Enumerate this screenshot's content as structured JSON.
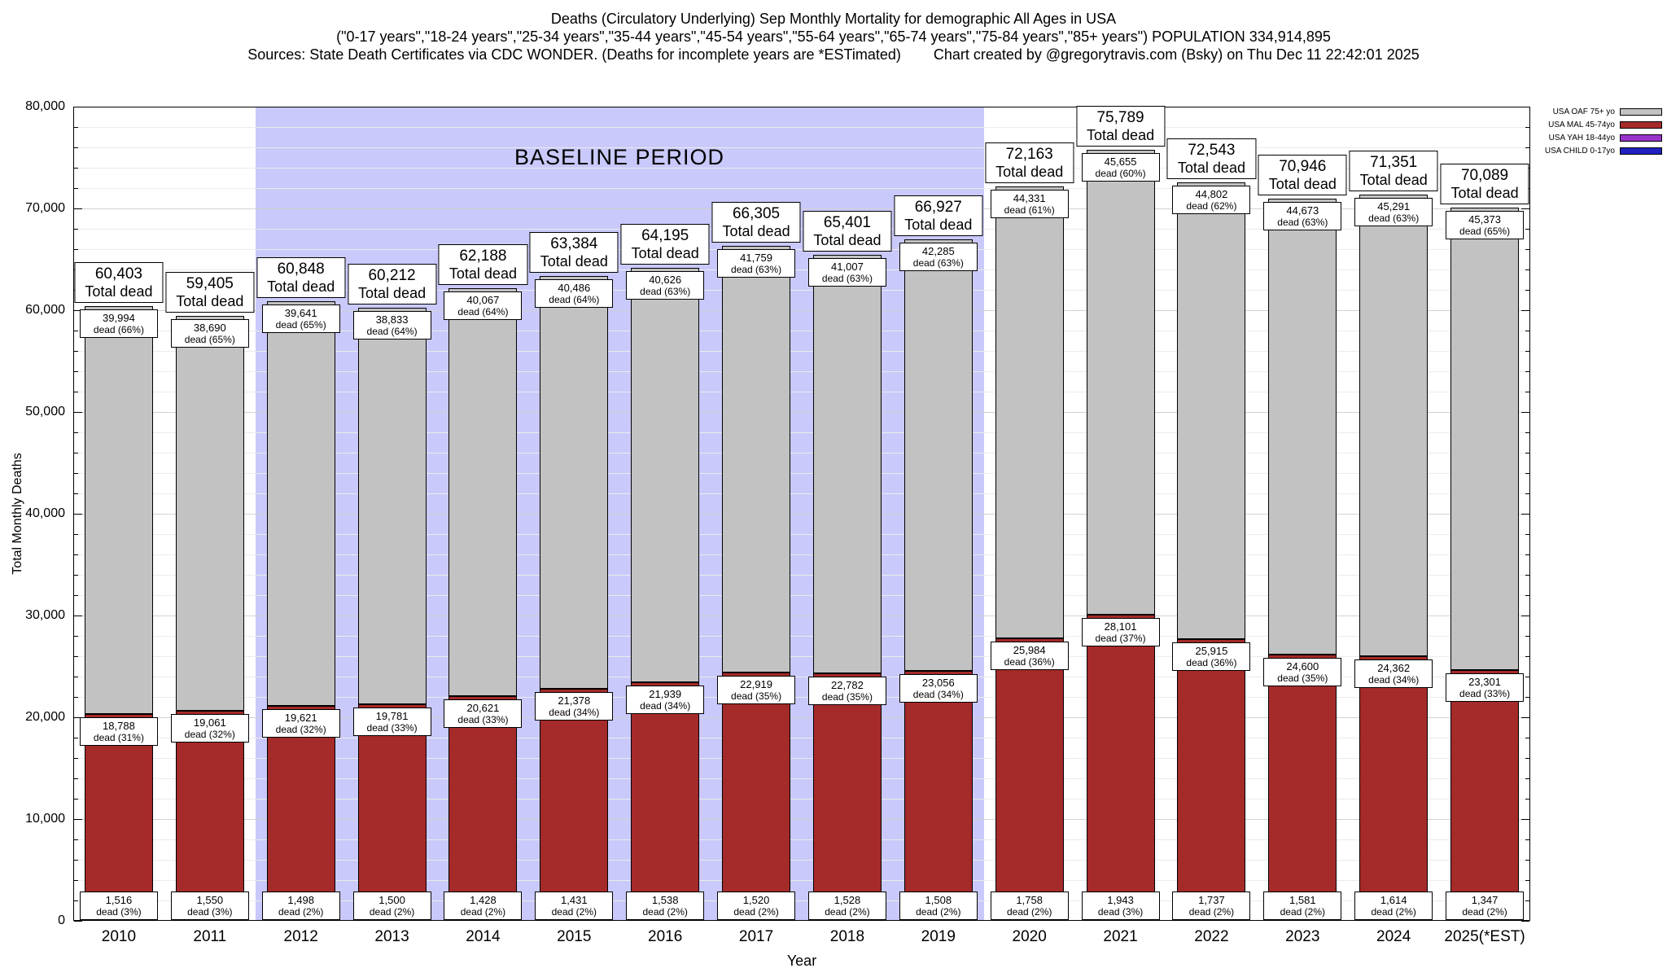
{
  "header": {
    "title_line1": "Deaths (Circulatory Underlying) Sep Monthly Mortality for demographic All Ages in USA",
    "title_line2": "(\"0-17 years\",\"18-24 years\",\"25-34 years\",\"35-44 years\",\"45-54 years\",\"55-64 years\",\"65-74 years\",\"75-84 years\",\"85+ years\") POPULATION 334,914,895",
    "sources": "Sources: State Death Certificates via CDC WONDER. (Deaths for incomplete years are *ESTimated)",
    "credit": "Chart created by @gregorytravis.com (Bsky) on Thu Dec 11 22:42:01 2025"
  },
  "chart_data": {
    "type": "bar",
    "stacked": true,
    "title": "Deaths (Circulatory Underlying) Sep Monthly Mortality for demographic All Ages in USA",
    "xlabel": "Year",
    "ylabel": "Total Monthly Deaths",
    "ylim": [
      0,
      80000
    ],
    "y_major_step": 10000,
    "y_minor_step": 2000,
    "grid": true,
    "y_ticks": [
      "0",
      "10,000",
      "20,000",
      "30,000",
      "40,000",
      "50,000",
      "60,000",
      "70,000",
      "80,000"
    ],
    "colors": {
      "oaf": "#c2c2c2",
      "mal": "#a52a2a",
      "yah": "#9933cc",
      "child": "#2020c0",
      "baseline": "#c9c9fb"
    },
    "baseline": {
      "label": "BASELINE PERIOD",
      "from_index": 2,
      "to_index": 9
    },
    "legend": [
      {
        "label": "USA OAF 75+ yo",
        "key": "oaf"
      },
      {
        "label": "USA MAL 45-74yo",
        "key": "mal"
      },
      {
        "label": "USA YAH 18-44yo",
        "key": "yah"
      },
      {
        "label": "USA CHILD 0-17yo",
        "key": "child"
      }
    ],
    "bars": [
      {
        "year": "2010",
        "total": {
          "value": 60403,
          "text": "60,403",
          "sub": "Total dead"
        },
        "oaf": {
          "value": 39994,
          "text": "39,994",
          "sub": "dead (66%)"
        },
        "mal": {
          "value": 18788,
          "text": "18,788",
          "sub": "dead (31%)"
        },
        "yah": {
          "value": 1516,
          "text": "1,516",
          "sub": "dead (3%)"
        }
      },
      {
        "year": "2011",
        "total": {
          "value": 59405,
          "text": "59,405",
          "sub": "Total dead"
        },
        "oaf": {
          "value": 38690,
          "text": "38,690",
          "sub": "dead (65%)"
        },
        "mal": {
          "value": 19061,
          "text": "19,061",
          "sub": "dead (32%)"
        },
        "yah": {
          "value": 1550,
          "text": "1,550",
          "sub": "dead (3%)"
        }
      },
      {
        "year": "2012",
        "total": {
          "value": 60848,
          "text": "60,848",
          "sub": "Total dead"
        },
        "oaf": {
          "value": 39641,
          "text": "39,641",
          "sub": "dead (65%)"
        },
        "mal": {
          "value": 19621,
          "text": "19,621",
          "sub": "dead (32%)"
        },
        "yah": {
          "value": 1498,
          "text": "1,498",
          "sub": "dead (2%)"
        }
      },
      {
        "year": "2013",
        "total": {
          "value": 60212,
          "text": "60,212",
          "sub": "Total dead"
        },
        "oaf": {
          "value": 38833,
          "text": "38,833",
          "sub": "dead (64%)"
        },
        "mal": {
          "value": 19781,
          "text": "19,781",
          "sub": "dead (33%)"
        },
        "yah": {
          "value": 1500,
          "text": "1,500",
          "sub": "dead (2%)"
        }
      },
      {
        "year": "2014",
        "total": {
          "value": 62188,
          "text": "62,188",
          "sub": "Total dead"
        },
        "oaf": {
          "value": 40067,
          "text": "40,067",
          "sub": "dead (64%)"
        },
        "mal": {
          "value": 20621,
          "text": "20,621",
          "sub": "dead (33%)"
        },
        "yah": {
          "value": 1428,
          "text": "1,428",
          "sub": "dead (2%)"
        }
      },
      {
        "year": "2015",
        "total": {
          "value": 63384,
          "text": "63,384",
          "sub": "Total dead"
        },
        "oaf": {
          "value": 40486,
          "text": "40,486",
          "sub": "dead (64%)"
        },
        "mal": {
          "value": 21378,
          "text": "21,378",
          "sub": "dead (34%)"
        },
        "yah": {
          "value": 1431,
          "text": "1,431",
          "sub": "dead (2%)"
        }
      },
      {
        "year": "2016",
        "total": {
          "value": 64195,
          "text": "64,195",
          "sub": "Total dead"
        },
        "oaf": {
          "value": 40626,
          "text": "40,626",
          "sub": "dead (63%)"
        },
        "mal": {
          "value": 21939,
          "text": "21,939",
          "sub": "dead (34%)"
        },
        "yah": {
          "value": 1538,
          "text": "1,538",
          "sub": "dead (2%)"
        }
      },
      {
        "year": "2017",
        "total": {
          "value": 66305,
          "text": "66,305",
          "sub": "Total dead"
        },
        "oaf": {
          "value": 41759,
          "text": "41,759",
          "sub": "dead (63%)"
        },
        "mal": {
          "value": 22919,
          "text": "22,919",
          "sub": "dead (35%)"
        },
        "yah": {
          "value": 1520,
          "text": "1,520",
          "sub": "dead (2%)"
        }
      },
      {
        "year": "2018",
        "total": {
          "value": 65401,
          "text": "65,401",
          "sub": "Total dead"
        },
        "oaf": {
          "value": 41007,
          "text": "41,007",
          "sub": "dead (63%)"
        },
        "mal": {
          "value": 22782,
          "text": "22,782",
          "sub": "dead (35%)"
        },
        "yah": {
          "value": 1528,
          "text": "1,528",
          "sub": "dead (2%)"
        }
      },
      {
        "year": "2019",
        "total": {
          "value": 66927,
          "text": "66,927",
          "sub": "Total dead"
        },
        "oaf": {
          "value": 42285,
          "text": "42,285",
          "sub": "dead (63%)"
        },
        "mal": {
          "value": 23056,
          "text": "23,056",
          "sub": "dead (34%)"
        },
        "yah": {
          "value": 1508,
          "text": "1,508",
          "sub": "dead (2%)"
        }
      },
      {
        "year": "2020",
        "total": {
          "value": 72163,
          "text": "72,163",
          "sub": "Total dead"
        },
        "oaf": {
          "value": 44331,
          "text": "44,331",
          "sub": "dead (61%)"
        },
        "mal": {
          "value": 25984,
          "text": "25,984",
          "sub": "dead (36%)"
        },
        "yah": {
          "value": 1758,
          "text": "1,758",
          "sub": "dead (2%)"
        }
      },
      {
        "year": "2021",
        "total": {
          "value": 75789,
          "text": "75,789",
          "sub": "Total dead"
        },
        "oaf": {
          "value": 45655,
          "text": "45,655",
          "sub": "dead (60%)"
        },
        "mal": {
          "value": 28101,
          "text": "28,101",
          "sub": "dead (37%)"
        },
        "yah": {
          "value": 1943,
          "text": "1,943",
          "sub": "dead (3%)"
        }
      },
      {
        "year": "2022",
        "total": {
          "value": 72543,
          "text": "72,543",
          "sub": "Total dead"
        },
        "oaf": {
          "value": 44802,
          "text": "44,802",
          "sub": "dead (62%)"
        },
        "mal": {
          "value": 25915,
          "text": "25,915",
          "sub": "dead (36%)"
        },
        "yah": {
          "value": 1737,
          "text": "1,737",
          "sub": "dead (2%)"
        }
      },
      {
        "year": "2023",
        "total": {
          "value": 70946,
          "text": "70,946",
          "sub": "Total dead"
        },
        "oaf": {
          "value": 44673,
          "text": "44,673",
          "sub": "dead (63%)"
        },
        "mal": {
          "value": 24600,
          "text": "24,600",
          "sub": "dead (35%)"
        },
        "yah": {
          "value": 1581,
          "text": "1,581",
          "sub": "dead (2%)"
        }
      },
      {
        "year": "2024",
        "total": {
          "value": 71351,
          "text": "71,351",
          "sub": "Total dead"
        },
        "oaf": {
          "value": 45291,
          "text": "45,291",
          "sub": "dead (63%)"
        },
        "mal": {
          "value": 24362,
          "text": "24,362",
          "sub": "dead (34%)"
        },
        "yah": {
          "value": 1614,
          "text": "1,614",
          "sub": "dead (2%)"
        }
      },
      {
        "year": "2025(*EST)",
        "total": {
          "value": 70089,
          "text": "70,089",
          "sub": "Total dead"
        },
        "oaf": {
          "value": 45373,
          "text": "45,373",
          "sub": "dead (65%)"
        },
        "mal": {
          "value": 23301,
          "text": "23,301",
          "sub": "dead (33%)"
        },
        "yah": {
          "value": 1347,
          "text": "1,347",
          "sub": "dead (2%)"
        }
      }
    ]
  }
}
